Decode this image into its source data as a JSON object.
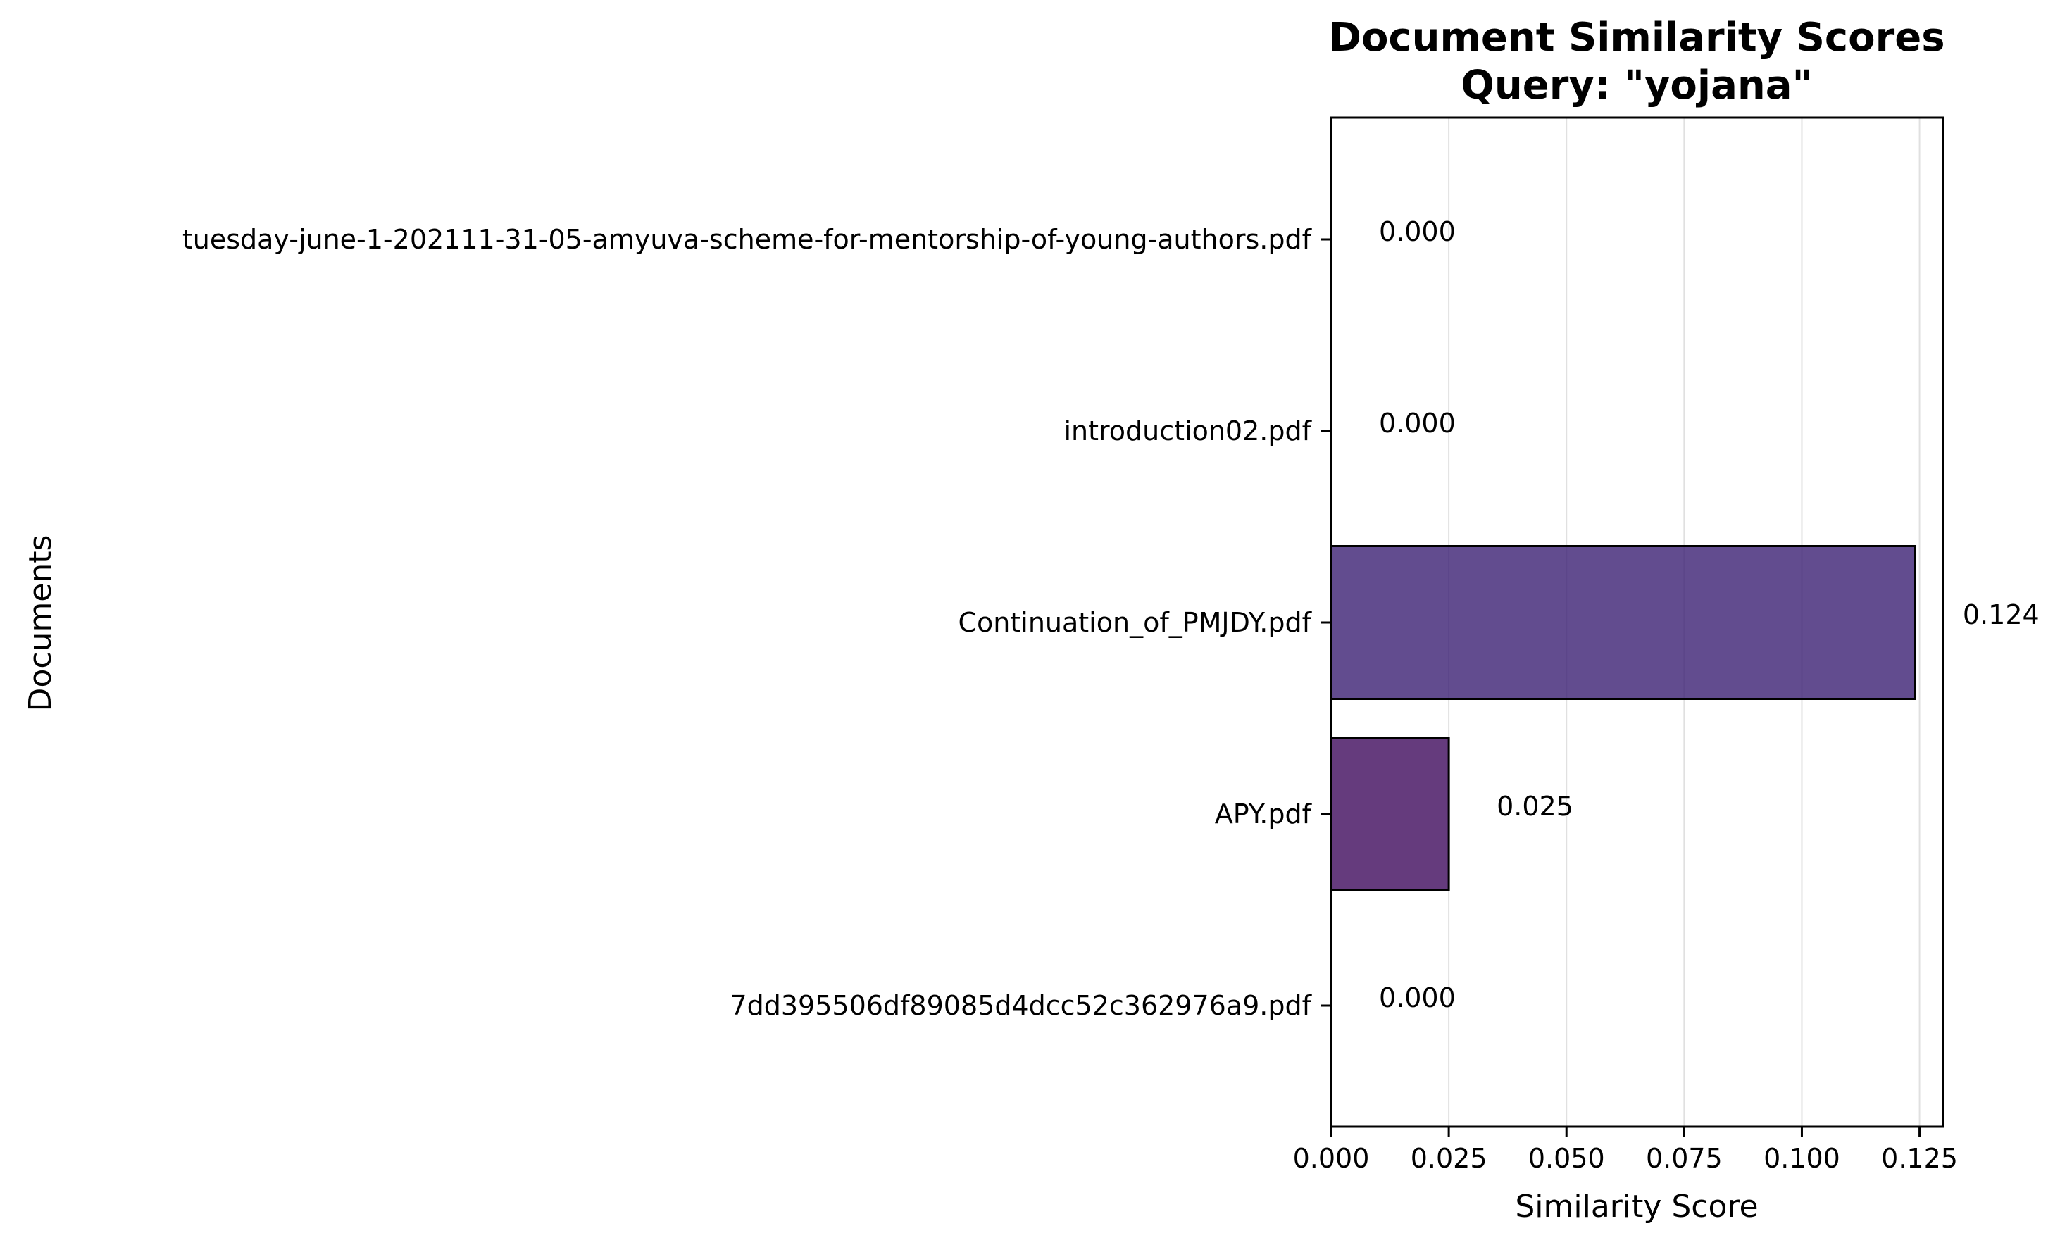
{
  "chart_data": {
    "type": "bar",
    "orientation": "horizontal",
    "title": "Document Similarity Scores",
    "subtitle": "Query: \"yojana\"",
    "xlabel": "Similarity Score",
    "ylabel": "Documents",
    "categories": [
      "tuesday-june-1-202111-31-05-amyuva-scheme-for-mentorship-of-young-authors.pdf",
      "introduction02.pdf",
      "Continuation_of_PMJDY.pdf",
      "APY.pdf",
      "7dd395506df89085d4dcc52c362976a9.pdf"
    ],
    "values": [
      0.0,
      0.0,
      0.124,
      0.025,
      0.0
    ],
    "value_labels": [
      "0.000",
      "0.000",
      "0.124",
      "0.025",
      "0.000"
    ],
    "bar_colors": [
      "#440154",
      "#440154",
      "#3b1f73",
      "#3f0a5c",
      "#440154"
    ],
    "xlim": [
      0,
      0.13
    ],
    "xticks": [
      0.0,
      0.025,
      0.05,
      0.075,
      0.1,
      0.125
    ],
    "xtick_labels": [
      "0.000",
      "0.025",
      "0.050",
      "0.075",
      "0.100",
      "0.125"
    ],
    "grid": "x-axis vertical lines",
    "legend": "none"
  }
}
